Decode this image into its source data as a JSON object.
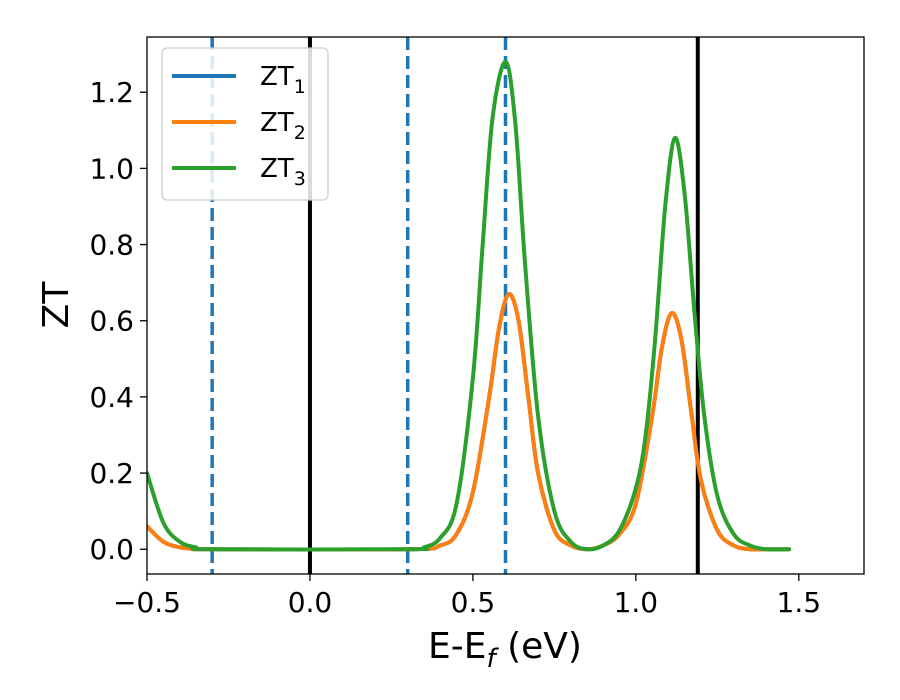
{
  "chart_data": {
    "type": "line",
    "xlabel": "E-E",
    "xlabel_sub": "f",
    "xlabel_unit": " (eV)",
    "ylabel": "ZT",
    "xlim": [
      -0.5,
      1.7
    ],
    "ylim": [
      -0.065,
      1.345
    ],
    "x_ticks": [
      -0.5,
      0.0,
      0.5,
      1.0,
      1.5
    ],
    "x_tick_labels": [
      "−0.5",
      "0.0",
      "0.5",
      "1.0",
      "1.5"
    ],
    "y_ticks": [
      0.0,
      0.2,
      0.4,
      0.6,
      0.8,
      1.0,
      1.2
    ],
    "y_tick_labels": [
      "0.0",
      "0.2",
      "0.4",
      "0.6",
      "0.8",
      "1.0",
      "1.2"
    ],
    "grid": false,
    "legend_position": "top-left",
    "series": [
      {
        "name": "ZT",
        "sub": "1",
        "color": "#1f77b4",
        "x": [
          -0.5,
          -0.45,
          -0.4,
          -0.35,
          -0.3,
          0.3,
          0.4,
          0.45,
          0.5,
          0.55,
          0.58,
          0.61,
          0.64,
          0.67,
          0.7,
          0.75,
          0.8,
          0.85,
          0.9,
          0.95,
          1.0,
          1.05,
          1.08,
          1.11,
          1.14,
          1.17,
          1.2,
          1.25,
          1.3,
          1.35,
          1.4,
          1.47
        ],
        "y": [
          0.06,
          0.02,
          0.005,
          0.001,
          0.0,
          0.0,
          0.01,
          0.04,
          0.15,
          0.4,
          0.58,
          0.67,
          0.6,
          0.4,
          0.2,
          0.05,
          0.01,
          0.0,
          0.01,
          0.04,
          0.12,
          0.35,
          0.53,
          0.62,
          0.55,
          0.36,
          0.18,
          0.05,
          0.01,
          0.0,
          0.0,
          0.0
        ]
      },
      {
        "name": "ZT",
        "sub": "2",
        "color": "#ff7f0e",
        "x": [
          -0.5,
          -0.45,
          -0.4,
          -0.35,
          -0.3,
          0.3,
          0.4,
          0.45,
          0.5,
          0.55,
          0.58,
          0.61,
          0.64,
          0.67,
          0.7,
          0.75,
          0.8,
          0.85,
          0.9,
          0.95,
          1.0,
          1.05,
          1.08,
          1.11,
          1.14,
          1.17,
          1.2,
          1.25,
          1.3,
          1.35,
          1.4,
          1.47
        ],
        "y": [
          0.06,
          0.02,
          0.005,
          0.001,
          0.0,
          0.0,
          0.01,
          0.04,
          0.15,
          0.4,
          0.58,
          0.67,
          0.6,
          0.4,
          0.2,
          0.05,
          0.01,
          0.0,
          0.01,
          0.04,
          0.12,
          0.35,
          0.53,
          0.62,
          0.55,
          0.36,
          0.18,
          0.05,
          0.01,
          0.0,
          0.0,
          0.0
        ]
      },
      {
        "name": "ZT",
        "sub": "3",
        "color": "#2ca02c",
        "x": [
          -0.5,
          -0.45,
          -0.4,
          -0.35,
          -0.3,
          0.3,
          0.35,
          0.4,
          0.45,
          0.5,
          0.53,
          0.56,
          0.6,
          0.63,
          0.66,
          0.7,
          0.75,
          0.8,
          0.85,
          0.9,
          0.95,
          1.0,
          1.03,
          1.06,
          1.09,
          1.12,
          1.15,
          1.18,
          1.21,
          1.25,
          1.3,
          1.35,
          1.4,
          1.47
        ],
        "y": [
          0.2,
          0.07,
          0.02,
          0.005,
          0.0,
          0.0,
          0.005,
          0.03,
          0.12,
          0.45,
          0.8,
          1.13,
          1.28,
          1.12,
          0.75,
          0.35,
          0.1,
          0.02,
          0.0,
          0.01,
          0.05,
          0.16,
          0.3,
          0.56,
          0.9,
          1.08,
          0.93,
          0.62,
          0.35,
          0.14,
          0.04,
          0.01,
          0.0,
          0.0
        ]
      }
    ],
    "vlines": [
      {
        "x": -0.3,
        "style": "dashed",
        "color": "#1f77b4"
      },
      {
        "x": 0.0,
        "style": "solid",
        "color": "#000000"
      },
      {
        "x": 0.3,
        "style": "dashed",
        "color": "#1f77b4"
      },
      {
        "x": 0.6,
        "style": "dashed",
        "color": "#1f77b4"
      },
      {
        "x": 1.19,
        "style": "solid",
        "color": "#000000"
      }
    ]
  }
}
